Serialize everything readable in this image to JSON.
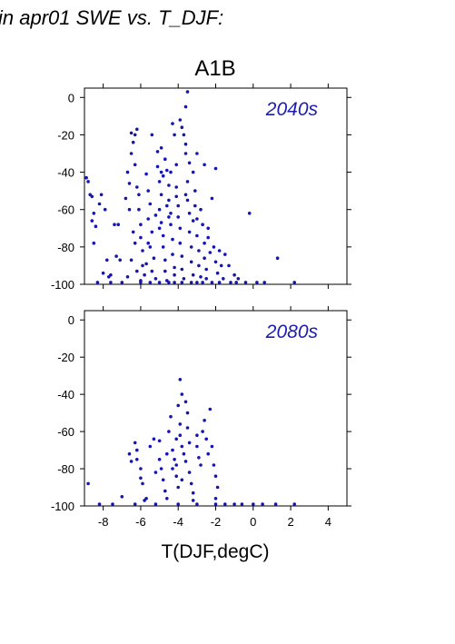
{
  "header": {
    "title": "in apr01 SWE vs. T_DJF:",
    "scenario": "A1B"
  },
  "colors": {
    "points": "#1515b3",
    "annotation": "#1c1cb0",
    "axis": "#000000"
  },
  "chart_data": [
    {
      "type": "scatter",
      "panel_label": "2040s",
      "xlabel": "T(DJF,degC)",
      "ylabel": "",
      "xlim": [
        -9,
        5
      ],
      "ylim": [
        -100,
        5
      ],
      "xticks": [
        -8,
        -6,
        -4,
        -2,
        0,
        2,
        4
      ],
      "yticks": [
        0,
        -20,
        -40,
        -60,
        -80,
        -100
      ],
      "show_x_tick_labels": false,
      "grid": false,
      "points": [
        [
          -8.9,
          -43
        ],
        [
          -8.8,
          -45
        ],
        [
          -8.7,
          -52
        ],
        [
          -8.6,
          -53
        ],
        [
          -8.5,
          -62
        ],
        [
          -8.6,
          -66
        ],
        [
          -8.5,
          -78
        ],
        [
          -8.4,
          -69
        ],
        [
          -8.1,
          -52
        ],
        [
          -8.2,
          -57
        ],
        [
          -7.9,
          -60
        ],
        [
          -8.0,
          -94
        ],
        [
          -7.8,
          -87
        ],
        [
          -7.7,
          -96
        ],
        [
          -7.6,
          -95
        ],
        [
          -7.4,
          -68
        ],
        [
          -7.3,
          -85
        ],
        [
          -7.2,
          -68
        ],
        [
          -7.1,
          -87
        ],
        [
          -6.8,
          -54
        ],
        [
          -6.7,
          -40
        ],
        [
          -6.6,
          -46
        ],
        [
          -6.5,
          -30
        ],
        [
          -6.5,
          -19
        ],
        [
          -6.4,
          -24
        ],
        [
          -6.3,
          -20
        ],
        [
          -6.2,
          -17
        ],
        [
          -6.3,
          -36
        ],
        [
          -6.2,
          -48
        ],
        [
          -6.1,
          -52
        ],
        [
          -6.1,
          -60
        ],
        [
          -6.0,
          -68
        ],
        [
          -6.0,
          -75
        ],
        [
          -5.9,
          -82
        ],
        [
          -5.9,
          -90
        ],
        [
          -5.8,
          -95
        ],
        [
          -6.6,
          -60
        ],
        [
          -6.4,
          -72
        ],
        [
          -6.3,
          -78
        ],
        [
          -6.5,
          -87
        ],
        [
          -6.2,
          -93
        ],
        [
          -6.7,
          -96
        ],
        [
          -6.0,
          -98
        ],
        [
          -5.7,
          -41
        ],
        [
          -5.6,
          -50
        ],
        [
          -5.5,
          -57
        ],
        [
          -5.6,
          -65
        ],
        [
          -5.4,
          -72
        ],
        [
          -5.5,
          -80
        ],
        [
          -5.3,
          -86
        ],
        [
          -5.4,
          -93
        ],
        [
          -5.2,
          -97
        ],
        [
          -5.7,
          -89
        ],
        [
          -5.6,
          -78
        ],
        [
          -5.1,
          -29
        ],
        [
          -5.1,
          -37
        ],
        [
          -5.0,
          -45
        ],
        [
          -4.9,
          -52
        ],
        [
          -5.0,
          -60
        ],
        [
          -4.9,
          -67
        ],
        [
          -4.8,
          -74
        ],
        [
          -4.8,
          -80
        ],
        [
          -4.7,
          -87
        ],
        [
          -4.7,
          -93
        ],
        [
          -4.6,
          -98
        ],
        [
          -5.2,
          -63
        ],
        [
          -5.0,
          -70
        ],
        [
          -4.9,
          -27
        ],
        [
          -4.7,
          -33
        ],
        [
          -4.6,
          -39
        ],
        [
          -4.5,
          -47
        ],
        [
          -4.5,
          -55
        ],
        [
          -4.4,
          -62
        ],
        [
          -4.4,
          -68
        ],
        [
          -4.3,
          -76
        ],
        [
          -4.3,
          -84
        ],
        [
          -4.2,
          -91
        ],
        [
          -4.2,
          -95
        ],
        [
          -4.6,
          -58
        ],
        [
          -4.5,
          -64
        ],
        [
          -4.4,
          -40
        ],
        [
          -4.3,
          -14
        ],
        [
          -4.2,
          -20
        ],
        [
          -4.1,
          -48
        ],
        [
          -4.1,
          -53
        ],
        [
          -4.0,
          -58
        ],
        [
          -4.0,
          -64
        ],
        [
          -3.9,
          -70
        ],
        [
          -3.9,
          -78
        ],
        [
          -3.8,
          -85
        ],
        [
          -3.8,
          -92
        ],
        [
          -3.7,
          -97
        ],
        [
          -3.9,
          -12
        ],
        [
          -3.8,
          -16
        ],
        [
          -3.7,
          -20
        ],
        [
          -3.6,
          -25
        ],
        [
          -3.6,
          -30
        ],
        [
          -3.5,
          -45
        ],
        [
          -3.5,
          -55
        ],
        [
          -3.4,
          -62
        ],
        [
          -3.4,
          -72
        ],
        [
          -3.3,
          -80
        ],
        [
          -3.3,
          -88
        ],
        [
          -3.2,
          -95
        ],
        [
          -3.6,
          -5
        ],
        [
          -3.5,
          3
        ],
        [
          -3.2,
          -40
        ],
        [
          -3.1,
          -50
        ],
        [
          -3.1,
          -58
        ],
        [
          -3.0,
          -65
        ],
        [
          -3.0,
          -74
        ],
        [
          -2.9,
          -82
        ],
        [
          -2.9,
          -90
        ],
        [
          -2.8,
          -96
        ],
        [
          -2.8,
          -60
        ],
        [
          -2.7,
          -68
        ],
        [
          -2.6,
          -78
        ],
        [
          -2.6,
          -86
        ],
        [
          -2.5,
          -92
        ],
        [
          -2.5,
          -97
        ],
        [
          -2.4,
          -75
        ],
        [
          -2.3,
          -83
        ],
        [
          -2.2,
          -54
        ],
        [
          -2.1,
          -80
        ],
        [
          -2.0,
          -88
        ],
        [
          -1.9,
          -94
        ],
        [
          -1.8,
          -82
        ],
        [
          -1.7,
          -90
        ],
        [
          -1.6,
          -97
        ],
        [
          -2.0,
          -38
        ],
        [
          -2.6,
          -36
        ],
        [
          -3.0,
          -30
        ],
        [
          -3.4,
          -35
        ],
        [
          -4.9,
          -40
        ],
        [
          -5.4,
          -20
        ],
        [
          -4.8,
          -42
        ],
        [
          -4.1,
          -36
        ],
        [
          -3.6,
          -52
        ],
        [
          -3.2,
          -66
        ],
        [
          -2.4,
          -70
        ],
        [
          -1.5,
          -84
        ],
        [
          -1.3,
          -90
        ],
        [
          -1.0,
          -95
        ],
        [
          -0.8,
          -97
        ],
        [
          -0.2,
          -62
        ],
        [
          -0.4,
          -99
        ],
        [
          0.2,
          -99
        ],
        [
          0.6,
          -99
        ],
        [
          1.3,
          -86
        ],
        [
          2.2,
          -99
        ],
        [
          -3.8,
          -99
        ],
        [
          -4.5,
          -99
        ],
        [
          -5.0,
          -99
        ],
        [
          -6.0,
          -99
        ],
        [
          -7.0,
          -99
        ],
        [
          -7.6,
          -99
        ],
        [
          -8.3,
          -99
        ],
        [
          -3.0,
          -99
        ],
        [
          -2.2,
          -99
        ],
        [
          -1.2,
          -99
        ],
        [
          -3.3,
          -99
        ],
        [
          -2.7,
          -99
        ],
        [
          -4.2,
          -99
        ],
        [
          -5.5,
          -99
        ],
        [
          -1.8,
          -99
        ],
        [
          -0.9,
          -99
        ]
      ]
    },
    {
      "type": "scatter",
      "panel_label": "2080s",
      "xlabel": "T(DJF,degC)",
      "ylabel": "",
      "xlim": [
        -9,
        5
      ],
      "ylim": [
        -100,
        5
      ],
      "xticks": [
        -8,
        -6,
        -4,
        -2,
        0,
        2,
        4
      ],
      "xtick_labels": [
        "-8",
        "-6",
        "-4",
        "-2",
        "0",
        "2",
        "4"
      ],
      "yticks": [
        0,
        -20,
        -40,
        -60,
        -80,
        -100
      ],
      "show_x_tick_labels": true,
      "grid": false,
      "points": [
        [
          -8.8,
          -88
        ],
        [
          -7.0,
          -95
        ],
        [
          -6.6,
          -72
        ],
        [
          -6.5,
          -76
        ],
        [
          -6.3,
          -66
        ],
        [
          -6.2,
          -70
        ],
        [
          -6.2,
          -75
        ],
        [
          -6.0,
          -80
        ],
        [
          -6.0,
          -85
        ],
        [
          -5.9,
          -88
        ],
        [
          -5.8,
          -97
        ],
        [
          -5.7,
          -96
        ],
        [
          -5.5,
          -68
        ],
        [
          -5.3,
          -64
        ],
        [
          -5.2,
          -82
        ],
        [
          -5.0,
          -65
        ],
        [
          -5.0,
          -75
        ],
        [
          -4.9,
          -80
        ],
        [
          -4.8,
          -86
        ],
        [
          -4.7,
          -92
        ],
        [
          -4.6,
          -96
        ],
        [
          -4.5,
          -60
        ],
        [
          -4.4,
          -52
        ],
        [
          -4.3,
          -70
        ],
        [
          -4.2,
          -75
        ],
        [
          -4.1,
          -78
        ],
        [
          -4.1,
          -84
        ],
        [
          -4.0,
          -90
        ],
        [
          -4.0,
          -46
        ],
        [
          -3.9,
          -56
        ],
        [
          -3.9,
          -62
        ],
        [
          -3.8,
          -40
        ],
        [
          -3.8,
          -68
        ],
        [
          -3.7,
          -72
        ],
        [
          -3.6,
          -76
        ],
        [
          -3.6,
          -44
        ],
        [
          -3.5,
          -50
        ],
        [
          -3.5,
          -58
        ],
        [
          -3.4,
          -66
        ],
        [
          -3.4,
          -82
        ],
        [
          -3.3,
          -88
        ],
        [
          -3.2,
          -93
        ],
        [
          -3.2,
          -97
        ],
        [
          -3.0,
          -62
        ],
        [
          -3.0,
          -68
        ],
        [
          -2.9,
          -74
        ],
        [
          -2.8,
          -78
        ],
        [
          -2.7,
          -60
        ],
        [
          -2.6,
          -54
        ],
        [
          -2.5,
          -64
        ],
        [
          -2.4,
          -72
        ],
        [
          -2.3,
          -48
        ],
        [
          -2.2,
          -68
        ],
        [
          -2.1,
          -78
        ],
        [
          -2.0,
          -84
        ],
        [
          -1.9,
          -90
        ],
        [
          -2.0,
          -96
        ],
        [
          -3.9,
          -32
        ],
        [
          -4.1,
          -64
        ],
        [
          -4.3,
          -80
        ],
        [
          -3.8,
          -86
        ],
        [
          -4.6,
          -72
        ],
        [
          -1.5,
          -99
        ],
        [
          -0.6,
          -99
        ],
        [
          0.0,
          -99
        ],
        [
          0.5,
          -99
        ],
        [
          1.2,
          -99
        ],
        [
          2.2,
          -99
        ],
        [
          -3.0,
          -99
        ],
        [
          -4.0,
          -99
        ],
        [
          -5.2,
          -99
        ],
        [
          -6.3,
          -99
        ],
        [
          -7.5,
          -99
        ],
        [
          -8.2,
          -99
        ],
        [
          -2.0,
          -99
        ],
        [
          -1.0,
          -99
        ]
      ]
    }
  ]
}
